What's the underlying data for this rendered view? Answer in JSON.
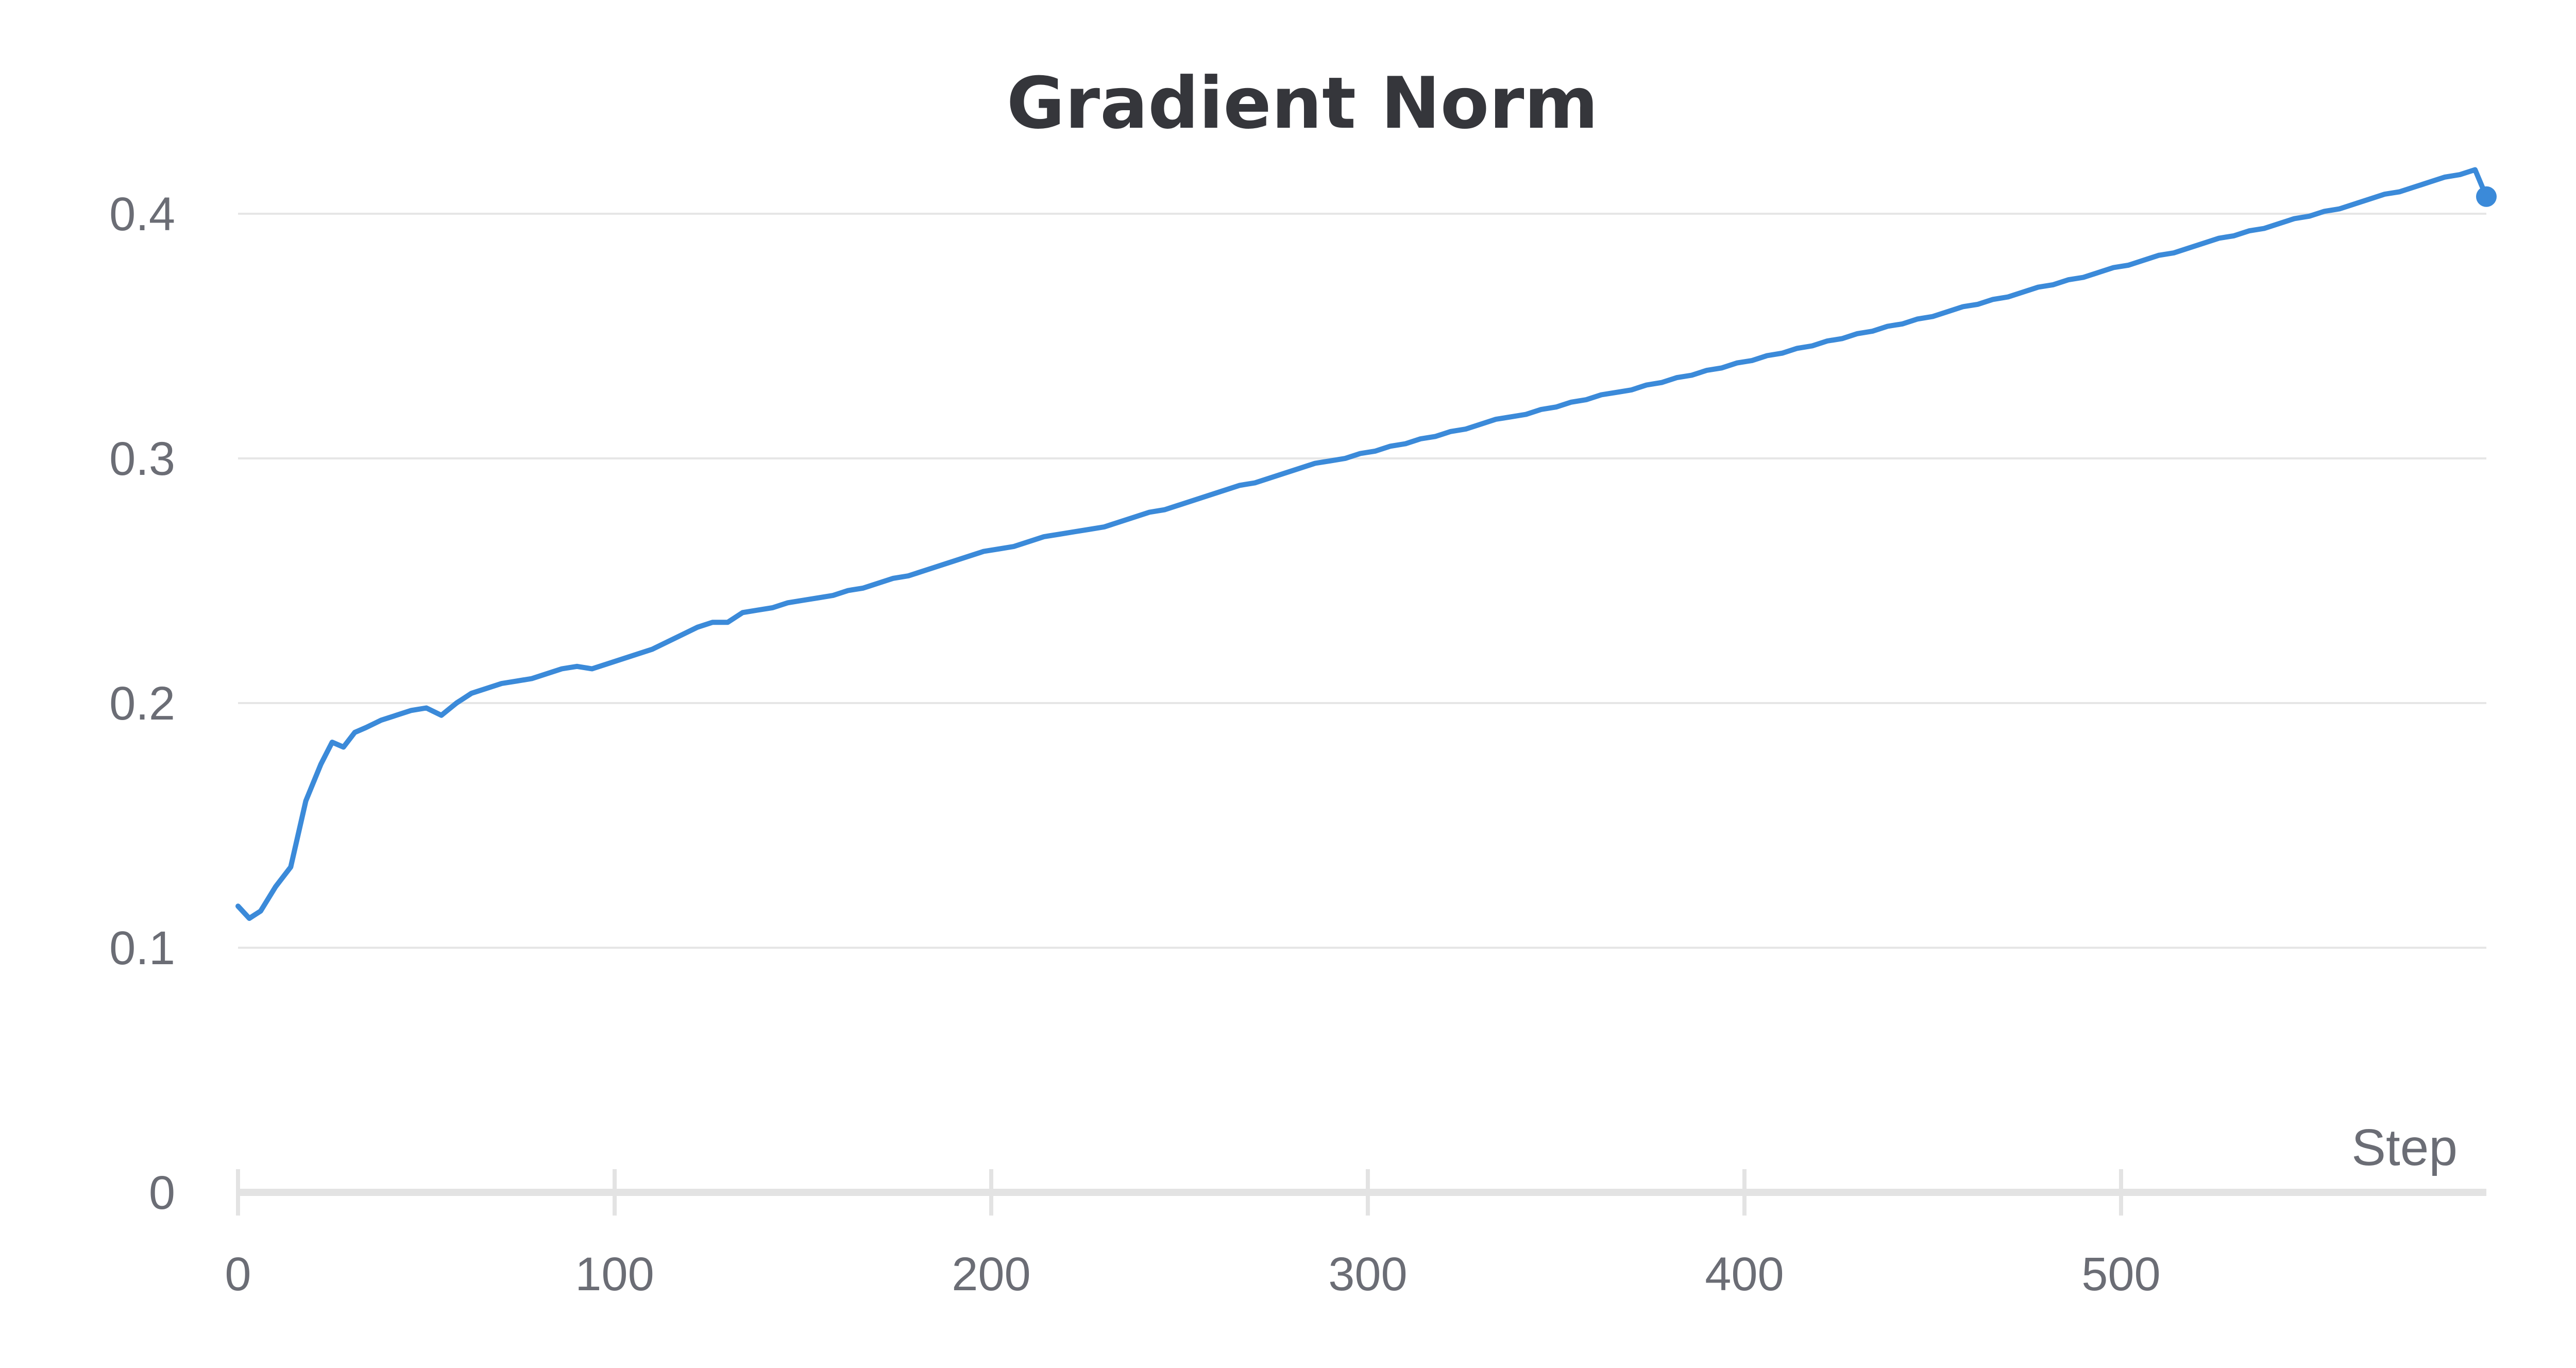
{
  "chart_data": {
    "type": "line",
    "title": "Gradient Norm",
    "xlabel": "Step",
    "ylabel": "",
    "xlim": [
      0,
      597
    ],
    "ylim": [
      0,
      0.42
    ],
    "xticks": [
      "0",
      "100",
      "200",
      "300",
      "400",
      "500"
    ],
    "xtick_values": [
      0,
      100,
      200,
      300,
      400,
      500
    ],
    "yticks": [
      "0",
      "0.1",
      "0.2",
      "0.3",
      "0.4"
    ],
    "ytick_values": [
      0,
      0.1,
      0.2,
      0.3,
      0.4
    ],
    "grid": true,
    "series": [
      {
        "color": "#3b8ad9",
        "end_marker": true,
        "x": [
          0,
          3,
          6,
          10,
          14,
          18,
          22,
          25,
          28,
          31,
          34,
          38,
          42,
          46,
          50,
          54,
          58,
          62,
          66,
          70,
          74,
          78,
          82,
          86,
          90,
          94,
          98,
          102,
          106,
          110,
          114,
          118,
          122,
          126,
          130,
          134,
          138,
          142,
          146,
          150,
          154,
          158,
          162,
          166,
          170,
          174,
          178,
          182,
          186,
          190,
          194,
          198,
          202,
          206,
          210,
          214,
          218,
          222,
          226,
          230,
          234,
          238,
          242,
          246,
          250,
          254,
          258,
          262,
          266,
          270,
          274,
          278,
          282,
          286,
          290,
          294,
          298,
          302,
          306,
          310,
          314,
          318,
          322,
          326,
          330,
          334,
          338,
          342,
          346,
          350,
          354,
          358,
          362,
          366,
          370,
          374,
          378,
          382,
          386,
          390,
          394,
          398,
          402,
          406,
          410,
          414,
          418,
          422,
          426,
          430,
          434,
          438,
          442,
          446,
          450,
          454,
          458,
          462,
          466,
          470,
          474,
          478,
          482,
          486,
          490,
          494,
          498,
          502,
          506,
          510,
          514,
          518,
          522,
          526,
          530,
          534,
          538,
          542,
          546,
          550,
          554,
          558,
          562,
          566,
          570,
          574,
          578,
          582,
          586,
          590,
          594,
          597
        ],
        "y": [
          0.117,
          0.112,
          0.115,
          0.125,
          0.133,
          0.16,
          0.175,
          0.184,
          0.182,
          0.188,
          0.19,
          0.193,
          0.195,
          0.197,
          0.198,
          0.195,
          0.2,
          0.204,
          0.206,
          0.208,
          0.209,
          0.21,
          0.212,
          0.214,
          0.215,
          0.214,
          0.216,
          0.218,
          0.22,
          0.222,
          0.225,
          0.228,
          0.231,
          0.233,
          0.233,
          0.237,
          0.238,
          0.239,
          0.241,
          0.242,
          0.243,
          0.244,
          0.246,
          0.247,
          0.249,
          0.251,
          0.252,
          0.254,
          0.256,
          0.258,
          0.26,
          0.262,
          0.263,
          0.264,
          0.266,
          0.268,
          0.269,
          0.27,
          0.271,
          0.272,
          0.274,
          0.276,
          0.278,
          0.279,
          0.281,
          0.283,
          0.285,
          0.287,
          0.289,
          0.29,
          0.292,
          0.294,
          0.296,
          0.298,
          0.299,
          0.3,
          0.302,
          0.303,
          0.305,
          0.306,
          0.308,
          0.309,
          0.311,
          0.312,
          0.314,
          0.316,
          0.317,
          0.318,
          0.32,
          0.321,
          0.323,
          0.324,
          0.326,
          0.327,
          0.328,
          0.33,
          0.331,
          0.333,
          0.334,
          0.336,
          0.337,
          0.339,
          0.34,
          0.342,
          0.343,
          0.345,
          0.346,
          0.348,
          0.349,
          0.351,
          0.352,
          0.354,
          0.355,
          0.357,
          0.358,
          0.36,
          0.362,
          0.363,
          0.365,
          0.366,
          0.368,
          0.37,
          0.371,
          0.373,
          0.374,
          0.376,
          0.378,
          0.379,
          0.381,
          0.383,
          0.384,
          0.386,
          0.388,
          0.39,
          0.391,
          0.393,
          0.394,
          0.396,
          0.398,
          0.399,
          0.401,
          0.402,
          0.404,
          0.406,
          0.408,
          0.409,
          0.411,
          0.413,
          0.415,
          0.416,
          0.418,
          0.407
        ]
      }
    ]
  }
}
